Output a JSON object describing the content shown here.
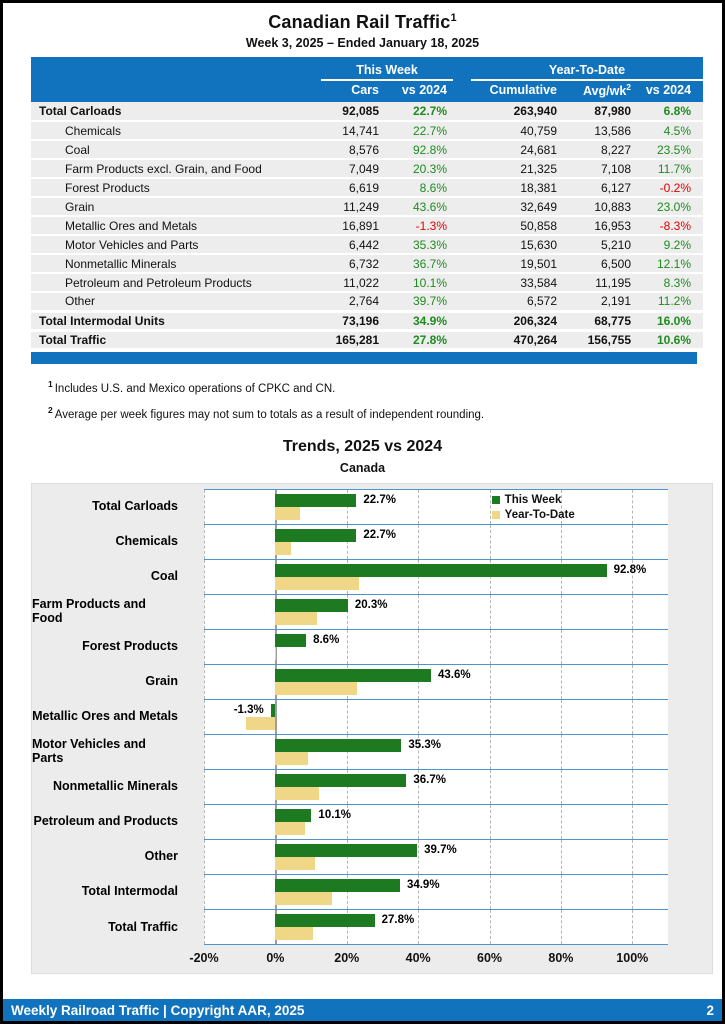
{
  "page": {
    "title": "Canadian Rail Traffic",
    "title_sup": "1",
    "subtitle": "Week 3, 2025 – Ended January 18, 2025",
    "footer_left": "Weekly Railroad Traffic | Copyright AAR, 2025",
    "footer_page": "2"
  },
  "table": {
    "group_headers": {
      "this_week": "This Week",
      "ytd": "Year-To-Date"
    },
    "col_headers": {
      "cars": "Cars",
      "week_vs": "vs 2024",
      "cumulative": "Cumulative",
      "avg_wk": "Avg/wk",
      "avg_wk_sup": "2",
      "ytd_vs": "vs 2024"
    },
    "rows": [
      {
        "label": "Total Carloads",
        "cars": "92,085",
        "week_vs": "22.7%",
        "cumulative": "263,940",
        "avg_wk": "87,980",
        "ytd_vs": "6.8%"
      },
      {
        "label": "Chemicals",
        "cars": "14,741",
        "week_vs": "22.7%",
        "cumulative": "40,759",
        "avg_wk": "13,586",
        "ytd_vs": "4.5%"
      },
      {
        "label": "Coal",
        "cars": "8,576",
        "week_vs": "92.8%",
        "cumulative": "24,681",
        "avg_wk": "8,227",
        "ytd_vs": "23.5%"
      },
      {
        "label": "Farm Products excl. Grain, and Food",
        "cars": "7,049",
        "week_vs": "20.3%",
        "cumulative": "21,325",
        "avg_wk": "7,108",
        "ytd_vs": "11.7%"
      },
      {
        "label": "Forest Products",
        "cars": "6,619",
        "week_vs": "8.6%",
        "cumulative": "18,381",
        "avg_wk": "6,127",
        "ytd_vs": "-0.2%"
      },
      {
        "label": "Grain",
        "cars": "11,249",
        "week_vs": "43.6%",
        "cumulative": "32,649",
        "avg_wk": "10,883",
        "ytd_vs": "23.0%"
      },
      {
        "label": "Metallic Ores and Metals",
        "cars": "16,891",
        "week_vs": "-1.3%",
        "cumulative": "50,858",
        "avg_wk": "16,953",
        "ytd_vs": "-8.3%"
      },
      {
        "label": "Motor Vehicles and Parts",
        "cars": "6,442",
        "week_vs": "35.3%",
        "cumulative": "15,630",
        "avg_wk": "5,210",
        "ytd_vs": "9.2%"
      },
      {
        "label": "Nonmetallic Minerals",
        "cars": "6,732",
        "week_vs": "36.7%",
        "cumulative": "19,501",
        "avg_wk": "6,500",
        "ytd_vs": "12.1%"
      },
      {
        "label": "Petroleum and Petroleum Products",
        "cars": "11,022",
        "week_vs": "10.1%",
        "cumulative": "33,584",
        "avg_wk": "11,195",
        "ytd_vs": "8.3%"
      },
      {
        "label": "Other",
        "cars": "2,764",
        "week_vs": "39.7%",
        "cumulative": "6,572",
        "avg_wk": "2,191",
        "ytd_vs": "11.2%"
      },
      {
        "label": "Total Intermodal Units",
        "cars": "73,196",
        "week_vs": "34.9%",
        "cumulative": "206,324",
        "avg_wk": "68,775",
        "ytd_vs": "16.0%"
      },
      {
        "label": "Total Traffic",
        "cars": "165,281",
        "week_vs": "27.8%",
        "cumulative": "470,264",
        "avg_wk": "156,755",
        "ytd_vs": "10.6%"
      }
    ]
  },
  "footnotes": [
    {
      "sup": "1",
      "text": "Includes U.S. and Mexico operations of CPKC and CN."
    },
    {
      "sup": "2",
      "text": "Average per week figures may not sum to totals as a result of independent rounding."
    }
  ],
  "chart_data": {
    "type": "bar",
    "orientation": "horizontal",
    "title": "Trends, 2025 vs 2024",
    "subtitle": "Canada",
    "categories": [
      "Total Carloads",
      "Chemicals",
      "Coal",
      "Farm Products and Food",
      "Forest Products",
      "Grain",
      "Metallic Ores and Metals",
      "Motor Vehicles and Parts",
      "Nonmetallic Minerals",
      "Petroleum and Products",
      "Other",
      "Total Intermodal",
      "Total Traffic"
    ],
    "series": [
      {
        "name": "This Week",
        "color": "#1D7A21",
        "values": [
          22.7,
          22.7,
          92.8,
          20.3,
          8.6,
          43.6,
          -1.3,
          35.3,
          36.7,
          10.1,
          39.7,
          34.9,
          27.8
        ],
        "labels": [
          "22.7%",
          "22.7%",
          "92.8%",
          "20.3%",
          "8.6%",
          "43.6%",
          "-1.3%",
          "35.3%",
          "36.7%",
          "10.1%",
          "39.7%",
          "34.9%",
          "27.8%"
        ]
      },
      {
        "name": "Year-To-Date",
        "color": "#F0D787",
        "values": [
          6.8,
          4.5,
          23.5,
          11.7,
          -0.2,
          23.0,
          -8.3,
          9.2,
          12.1,
          8.3,
          11.2,
          16.0,
          10.6
        ]
      }
    ],
    "xlim": [
      -20,
      110
    ],
    "ticks": [
      {
        "v": -20,
        "label": "-20%"
      },
      {
        "v": 0,
        "label": "0%"
      },
      {
        "v": 20,
        "label": "20%"
      },
      {
        "v": 40,
        "label": "40%"
      },
      {
        "v": 60,
        "label": "60%"
      },
      {
        "v": 80,
        "label": "80%"
      },
      {
        "v": 100,
        "label": "100%"
      }
    ],
    "legend_position": "top-right",
    "grid": "dashed-vertical",
    "accent_colors": {
      "header_blue": "#1173BD",
      "band_line_blue": "#4D93D0",
      "positive_green": "#1f8b1f",
      "negative_red": "#e60000"
    }
  }
}
